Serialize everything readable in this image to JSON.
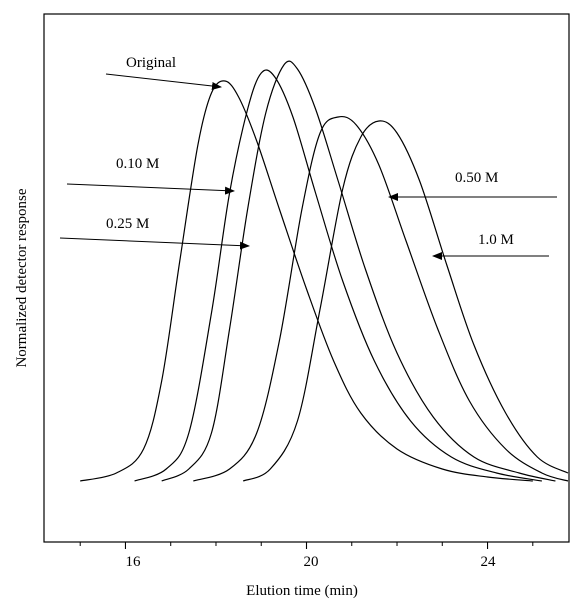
{
  "chart_data": {
    "type": "line",
    "xlabel": "Elution time (min)",
    "ylabel": "Normalized detector response",
    "xlim": [
      14.2,
      25.8
    ],
    "ylim": [
      0,
      1.12
    ],
    "xticks": [
      16,
      20,
      24
    ],
    "xtick_labels": [
      "16",
      "20",
      "24"
    ],
    "yticks_shown": false,
    "grid": false,
    "legend": "none (series identified by arrow annotations)",
    "series": [
      {
        "name": "Original",
        "line_color": "#000000",
        "x": [
          15.0,
          15.8,
          16.4,
          16.8,
          17.2,
          17.6,
          17.9,
          18.2,
          18.5,
          18.9,
          19.4,
          20.0,
          20.6,
          21.2,
          22.0,
          23.0,
          24.0,
          25.0
        ],
        "y": [
          0.0,
          0.02,
          0.08,
          0.25,
          0.55,
          0.84,
          0.97,
          1.0,
          0.96,
          0.85,
          0.68,
          0.48,
          0.3,
          0.17,
          0.08,
          0.03,
          0.01,
          0.0
        ]
      },
      {
        "name": "0.10 M",
        "line_color": "#000000",
        "x": [
          16.2,
          16.9,
          17.4,
          17.9,
          18.3,
          18.7,
          19.0,
          19.3,
          19.7,
          20.2,
          20.8,
          21.5,
          22.3,
          23.2,
          24.2,
          25.2
        ],
        "y": [
          0.0,
          0.03,
          0.12,
          0.42,
          0.72,
          0.93,
          1.02,
          1.01,
          0.91,
          0.72,
          0.5,
          0.3,
          0.15,
          0.06,
          0.02,
          0.0
        ]
      },
      {
        "name": "0.25 M",
        "line_color": "#000000",
        "x": [
          16.8,
          17.4,
          17.9,
          18.3,
          18.7,
          19.1,
          19.5,
          19.8,
          20.2,
          20.7,
          21.3,
          22.0,
          22.8,
          23.7,
          24.7,
          25.5
        ],
        "y": [
          0.0,
          0.03,
          0.12,
          0.38,
          0.68,
          0.92,
          1.04,
          1.03,
          0.93,
          0.75,
          0.53,
          0.32,
          0.16,
          0.06,
          0.02,
          0.0
        ]
      },
      {
        "name": "0.50 M",
        "line_color": "#000000",
        "x": [
          17.5,
          18.3,
          18.9,
          19.4,
          19.9,
          20.3,
          20.7,
          21.1,
          21.6,
          22.2,
          22.9,
          23.6,
          24.4,
          25.2,
          25.8
        ],
        "y": [
          0.0,
          0.03,
          0.12,
          0.35,
          0.68,
          0.87,
          0.91,
          0.89,
          0.79,
          0.6,
          0.38,
          0.2,
          0.08,
          0.02,
          0.0
        ]
      },
      {
        "name": "1.0 M",
        "line_color": "#000000",
        "x": [
          18.6,
          19.2,
          19.8,
          20.3,
          20.8,
          21.2,
          21.6,
          22.0,
          22.5,
          23.1,
          23.7,
          24.4,
          25.1,
          25.8
        ],
        "y": [
          0.0,
          0.03,
          0.15,
          0.43,
          0.73,
          0.86,
          0.9,
          0.87,
          0.75,
          0.54,
          0.34,
          0.17,
          0.06,
          0.02
        ]
      }
    ],
    "annotations": [
      {
        "text": "Original",
        "points_to_series": "Original"
      },
      {
        "text": "0.10 M",
        "points_to_series": "0.10 M"
      },
      {
        "text": "0.25 M",
        "points_to_series": "0.25 M"
      },
      {
        "text": "0.50 M",
        "points_to_series": "0.50 M"
      },
      {
        "text": "1.0 M",
        "points_to_series": "1.0 M"
      }
    ]
  }
}
